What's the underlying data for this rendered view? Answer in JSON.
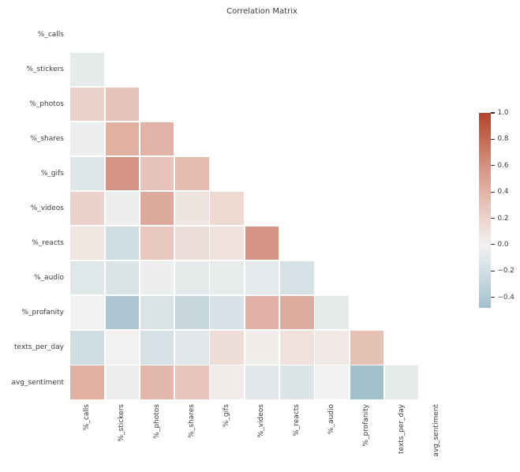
{
  "title": "Correlation Matrix",
  "text_color": "#3b3b3b",
  "chart_data": {
    "type": "heatmap",
    "title": "Correlation Matrix",
    "mask": "upper triangle including diagonal hidden (white)",
    "grid": "white gaps between cells, no axis spines, no tick marks on axes",
    "labels": [
      "%_calls",
      "%_stickers",
      "%_photos",
      "%_shares",
      "%_gifs",
      "%_videos",
      "%_reacts",
      "%_audio",
      "%_profanity",
      "texts_per_day",
      "avg_sentiment"
    ],
    "matrix": [
      [
        null,
        null,
        null,
        null,
        null,
        null,
        null,
        null,
        null,
        null,
        null
      ],
      [
        -0.08,
        null,
        null,
        null,
        null,
        null,
        null,
        null,
        null,
        null,
        null
      ],
      [
        0.21,
        0.3,
        null,
        null,
        null,
        null,
        null,
        null,
        null,
        null,
        null
      ],
      [
        -0.03,
        0.42,
        0.4,
        null,
        null,
        null,
        null,
        null,
        null,
        null,
        null
      ],
      [
        -0.12,
        0.58,
        0.3,
        0.35,
        null,
        null,
        null,
        null,
        null,
        null,
        null
      ],
      [
        0.21,
        -0.03,
        0.46,
        0.09,
        0.16,
        null,
        null,
        null,
        null,
        null,
        null
      ],
      [
        0.08,
        -0.22,
        0.27,
        0.13,
        0.1,
        0.58,
        null,
        null,
        null,
        null,
        null
      ],
      [
        -0.11,
        -0.15,
        -0.03,
        -0.08,
        -0.07,
        -0.09,
        -0.18,
        null,
        null,
        null,
        null
      ],
      [
        0.0,
        -0.42,
        -0.16,
        -0.27,
        -0.17,
        0.41,
        0.44,
        -0.08,
        null,
        null,
        null
      ],
      [
        -0.22,
        0.0,
        -0.18,
        -0.1,
        0.14,
        0.03,
        0.11,
        0.06,
        0.32,
        null,
        null
      ],
      [
        0.42,
        -0.04,
        0.37,
        0.28,
        0.04,
        -0.1,
        -0.14,
        0.0,
        -0.48,
        -0.08,
        null
      ]
    ],
    "colorbar": {
      "vmin": -0.48,
      "vmax": 1.0,
      "ticks": [
        1.0,
        0.8,
        0.6,
        0.4,
        0.2,
        0.0,
        -0.2,
        -0.4
      ],
      "tick_labels": [
        "1.0",
        "0.8",
        "0.6",
        "0.4",
        "0.2",
        "0.0",
        "−0.2",
        "−0.4"
      ],
      "position": "right"
    },
    "colormap_anchors": [
      {
        "v": -0.48,
        "color": "#a3c0cd"
      },
      {
        "v": -0.2,
        "color": "#d2dfe4"
      },
      {
        "v": 0.0,
        "color": "#f2f1f0"
      },
      {
        "v": 0.2,
        "color": "#ecd3cb"
      },
      {
        "v": 0.4,
        "color": "#e1b3a6"
      },
      {
        "v": 0.6,
        "color": "#d4917f"
      },
      {
        "v": 0.8,
        "color": "#c46a52"
      },
      {
        "v": 1.0,
        "color": "#b3432b"
      }
    ]
  }
}
